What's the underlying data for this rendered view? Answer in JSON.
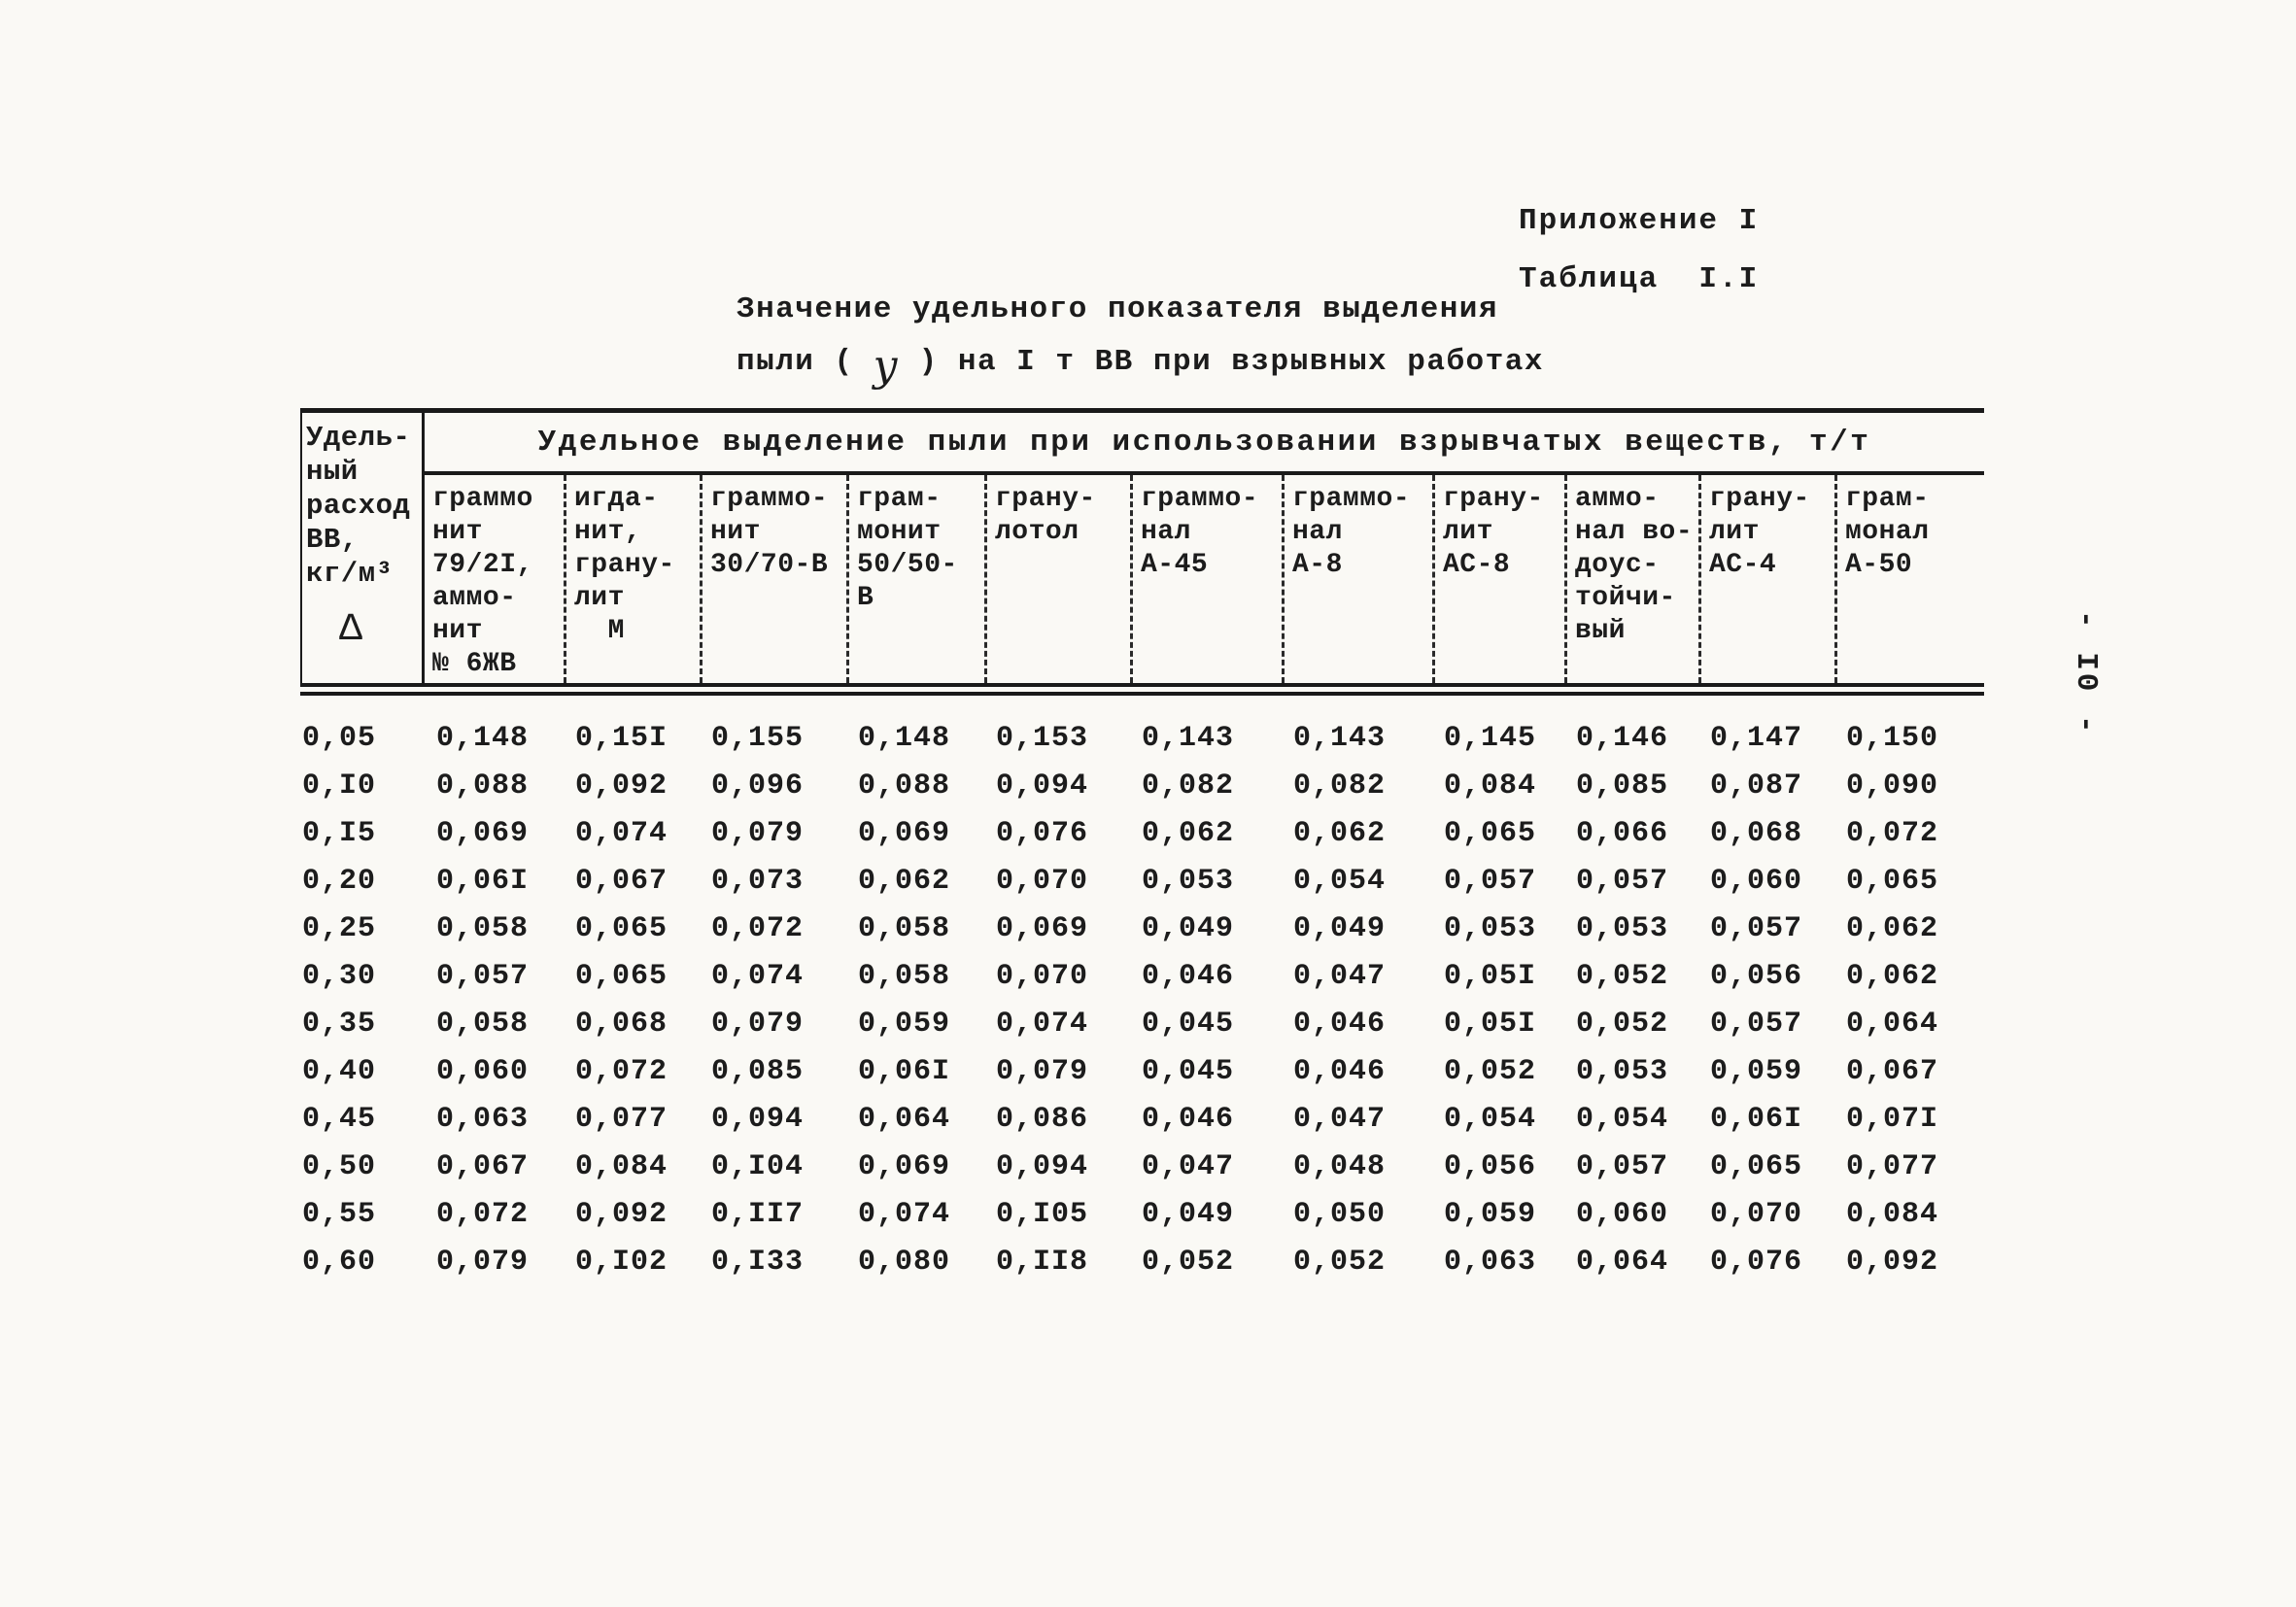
{
  "page": {
    "appendix_label": "Приложение I",
    "table_label": "Таблица  I.I",
    "title_line1": "Значение удельного показателя выделения",
    "title_line2_before": "пыли (",
    "title_symbol": "у",
    "title_line2_after": ") на I т ВВ при взрывных работах",
    "side_page_number": "- I0 -"
  },
  "table": {
    "corner_header": "Удель-\nный\nрасход\nВВ,\nкг/м³",
    "corner_symbol": "Δ",
    "span_header": "Удельное выделение пыли при использовании взрывчатых веществ, т/т",
    "column_headers": [
      "граммо\nнит\n79/2I,\nаммо-\nнит\n№ 6ЖВ",
      "игда-\nнит,\nграну-\nлит\n  М",
      "граммо-\nнит\n30/70-В",
      "грам-\nмонит\n50/50-\nВ",
      "грану-\nлотол",
      "граммо-\nнал\nА-45",
      "граммо-\nнал\nА-8",
      "грану-\nлит\nАС-8",
      "аммо-\nнал во-\nдоус-\nтойчи-\nвый",
      "грану-\nлит\nАС-4",
      "грам-\nмонал\nА-50"
    ],
    "rows": [
      {
        "consumption": "0,05",
        "values": [
          "0,148",
          "0,15I",
          "0,155",
          "0,148",
          "0,153",
          "0,143",
          "0,143",
          "0,145",
          "0,146",
          "0,147",
          "0,150"
        ]
      },
      {
        "consumption": "0,I0",
        "values": [
          "0,088",
          "0,092",
          "0,096",
          "0,088",
          "0,094",
          "0,082",
          "0,082",
          "0,084",
          "0,085",
          "0,087",
          "0,090"
        ]
      },
      {
        "consumption": "0,I5",
        "values": [
          "0,069",
          "0,074",
          "0,079",
          "0,069",
          "0,076",
          "0,062",
          "0,062",
          "0,065",
          "0,066",
          "0,068",
          "0,072"
        ]
      },
      {
        "consumption": "0,20",
        "values": [
          "0,06I",
          "0,067",
          "0,073",
          "0,062",
          "0,070",
          "0,053",
          "0,054",
          "0,057",
          "0,057",
          "0,060",
          "0,065"
        ]
      },
      {
        "consumption": "0,25",
        "values": [
          "0,058",
          "0,065",
          "0,072",
          "0,058",
          "0,069",
          "0,049",
          "0,049",
          "0,053",
          "0,053",
          "0,057",
          "0,062"
        ]
      },
      {
        "consumption": "0,30",
        "values": [
          "0,057",
          "0,065",
          "0,074",
          "0,058",
          "0,070",
          "0,046",
          "0,047",
          "0,05I",
          "0,052",
          "0,056",
          "0,062"
        ]
      },
      {
        "consumption": "0,35",
        "values": [
          "0,058",
          "0,068",
          "0,079",
          "0,059",
          "0,074",
          "0,045",
          "0,046",
          "0,05I",
          "0,052",
          "0,057",
          "0,064"
        ]
      },
      {
        "consumption": "0,40",
        "values": [
          "0,060",
          "0,072",
          "0,085",
          "0,06I",
          "0,079",
          "0,045",
          "0,046",
          "0,052",
          "0,053",
          "0,059",
          "0,067"
        ]
      },
      {
        "consumption": "0,45",
        "values": [
          "0,063",
          "0,077",
          "0,094",
          "0,064",
          "0,086",
          "0,046",
          "0,047",
          "0,054",
          "0,054",
          "0,06I",
          "0,07I"
        ]
      },
      {
        "consumption": "0,50",
        "values": [
          "0,067",
          "0,084",
          "0,I04",
          "0,069",
          "0,094",
          "0,047",
          "0,048",
          "0,056",
          "0,057",
          "0,065",
          "0,077"
        ]
      },
      {
        "consumption": "0,55",
        "values": [
          "0,072",
          "0,092",
          "0,II7",
          "0,074",
          "0,I05",
          "0,049",
          "0,050",
          "0,059",
          "0,060",
          "0,070",
          "0,084"
        ]
      },
      {
        "consumption": "0,60",
        "values": [
          "0,079",
          "0,I02",
          "0,I33",
          "0,080",
          "0,II8",
          "0,052",
          "0,052",
          "0,063",
          "0,064",
          "0,076",
          "0,092"
        ]
      }
    ]
  }
}
